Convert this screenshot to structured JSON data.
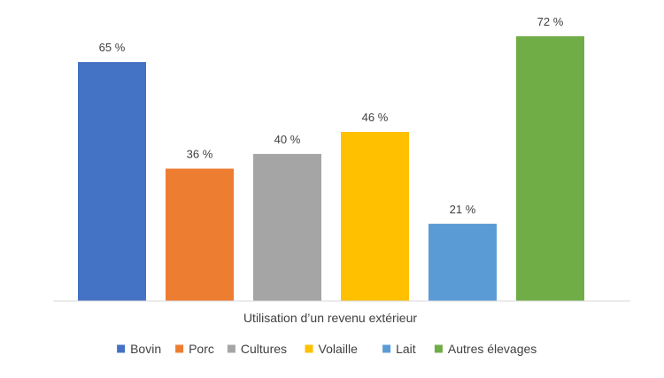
{
  "chart_data": {
    "type": "bar",
    "categories": [
      "Bovin",
      "Porc",
      "Cultures",
      "Volaille",
      "Lait",
      "Autres élevages"
    ],
    "series": [
      {
        "name": "Bovin",
        "value": 65,
        "label": "65 %",
        "color": "#4472C4"
      },
      {
        "name": "Porc",
        "value": 36,
        "label": "36 %",
        "color": "#ED7D31"
      },
      {
        "name": "Cultures",
        "value": 40,
        "label": "40 %",
        "color": "#A5A5A5"
      },
      {
        "name": "Volaille",
        "value": 46,
        "label": "46 %",
        "color": "#FFC000"
      },
      {
        "name": "Lait",
        "value": 21,
        "label": "21 %",
        "color": "#5B9BD5"
      },
      {
        "name": "Autres élevages",
        "value": 72,
        "label": "72 %",
        "color": "#70AD47"
      }
    ],
    "xlabel": "Utilisation d’un revenu extérieur",
    "ylabel": "",
    "ylim": [
      0,
      72
    ],
    "grid": false,
    "legend_position": "bottom",
    "axis_color": "#D9D9D9"
  }
}
